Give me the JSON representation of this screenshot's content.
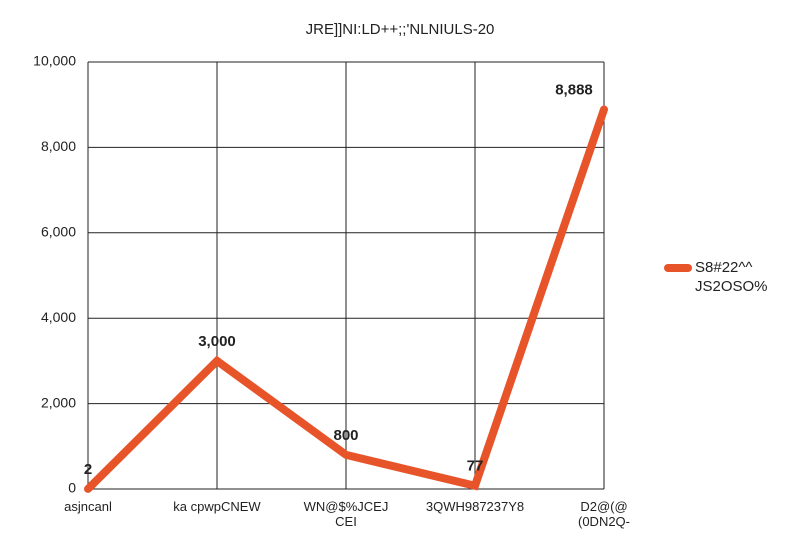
{
  "chart_data": {
    "type": "line",
    "title": "JRE]]NI:LD++;;'NLNIULS-20",
    "categories": [
      "asjncanl",
      "ka cpwpCNEW",
      "WN@$%JCEJ\nCEI",
      "3QWH987237Y8",
      "D2@(@\n(0DN2Q-"
    ],
    "series": [
      {
        "name": "S8#22^^\nJS2OSO%",
        "color": "#e8542a",
        "values": [
          2,
          3000,
          800,
          77,
          8888
        ],
        "value_labels": [
          "2",
          "3,000",
          "800",
          "77",
          "8,888"
        ]
      }
    ],
    "ylim": [
      0,
      10000
    ],
    "yticks": [
      0,
      {
        "value": 2000,
        "label": "2,000"
      },
      {
        "value": 4000,
        "label": "4,000"
      },
      {
        "value": 6000,
        "label": "6,000"
      },
      {
        "value": 8000,
        "label": "8,000"
      },
      {
        "value": 10000,
        "label": "10,000"
      }
    ],
    "grid": true,
    "legend": "right"
  }
}
